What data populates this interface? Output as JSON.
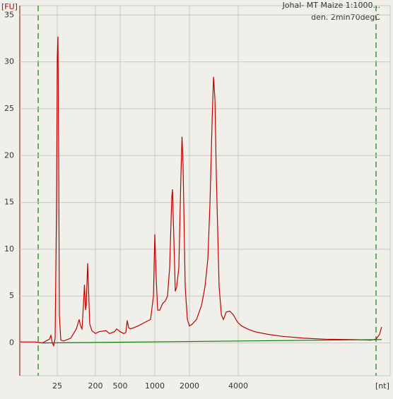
{
  "chart_data": {
    "type": "line",
    "title": "Johal- MT Maize 1:1000...",
    "subtitle": "den. 2min70degC",
    "ylabel": "[FU]",
    "xlabel": "[nt]",
    "xlim": [
      3.3,
      34800
    ],
    "xticks": [
      25,
      200,
      500,
      1000,
      2000,
      4000
    ],
    "ylim": [
      -3.5,
      36
    ],
    "yticks": [
      0,
      5,
      10,
      15,
      20,
      25,
      30,
      35
    ],
    "grid": true,
    "series": [
      {
        "color": "#c00000",
        "x": [
          3.3,
          5.2,
          7.6,
          11.1,
          16.4,
          17.7,
          19.1,
          20.6,
          22.3,
          24.1,
          25,
          26.0,
          27.0,
          28.1,
          30.3,
          35.3,
          52.0,
          70.7,
          82.4,
          89.1,
          96.2,
          104,
          110,
          117,
          121,
          131,
          139,
          147,
          165,
          200,
          228,
          296,
          337,
          405,
          439,
          500,
          537,
          560,
          576,
          593,
          618,
          712,
          821,
          919,
          973,
          1000,
          1028,
          1058,
          1105,
          1169,
          1237,
          1290,
          1346,
          1404,
          1425,
          1466,
          1508,
          1550,
          1618,
          1688,
          1723,
          1762,
          1837,
          1919,
          2000,
          2081,
          2212,
          2374,
          2495,
          2600,
          2680,
          2763,
          2818,
          2873,
          2931,
          3050,
          3148,
          3243,
          3377,
          3548,
          3733,
          3966,
          4207,
          4560,
          5045,
          6166,
          7546,
          10200,
          13800,
          20600,
          26500,
          28400,
          29900,
          30800
        ],
        "values": [
          0.1,
          0.1,
          0.1,
          0,
          0.4,
          0.8,
          0,
          -0.3,
          0.5,
          15,
          30.5,
          32.7,
          20,
          3,
          0.3,
          0.2,
          0.5,
          1.5,
          2.5,
          1.8,
          1.5,
          4,
          6.2,
          3.5,
          4,
          8.5,
          5,
          2,
          1.3,
          1,
          1.2,
          1.3,
          1.0,
          1.2,
          1.5,
          1.2,
          1.0,
          1.1,
          2.4,
          1.6,
          1.5,
          1.8,
          2.2,
          2.5,
          5,
          11.6,
          7,
          3.5,
          3.5,
          4.2,
          4.5,
          5,
          8,
          15.5,
          16.4,
          11,
          5.5,
          6,
          8,
          18,
          22,
          19,
          6,
          2.5,
          1.8,
          2.0,
          2.5,
          4.0,
          6,
          9,
          15,
          24,
          28.4,
          26,
          18,
          6,
          3,
          2.5,
          3.3,
          3.4,
          3,
          2.2,
          1.8,
          1.5,
          1.2,
          0.9,
          0.7,
          0.5,
          0.4,
          0.35,
          0.3,
          0.4,
          0.9,
          1.7
        ]
      },
      {
        "color": "#008000",
        "x": [
          11.1,
          30800
        ],
        "values": [
          0,
          0.35
        ]
      }
    ]
  }
}
